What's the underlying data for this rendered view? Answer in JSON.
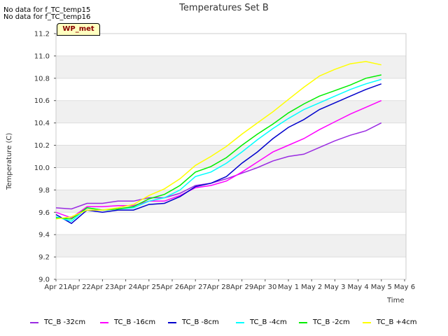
{
  "notes": [
    "No data for f_TC_temp15",
    "No data for f_TC_temp16"
  ],
  "badge": "WP_met",
  "chart_data": {
    "type": "line",
    "title": "Temperatures Set B",
    "xlabel": "Time",
    "ylabel": "Temperature (C)",
    "ylim": [
      9.0,
      11.2
    ],
    "yticks": [
      "9.0",
      "9.2",
      "9.4",
      "9.6",
      "9.8",
      "10.0",
      "10.2",
      "10.4",
      "10.6",
      "10.8",
      "11.0",
      "11.2"
    ],
    "xticks": [
      "Apr 21",
      "Apr 22",
      "Apr 23",
      "Apr 24",
      "Apr 25",
      "Apr 26",
      "Apr 27",
      "Apr 28",
      "Apr 29",
      "Apr 30",
      "May 1",
      "May 2",
      "May 3",
      "May 4",
      "May 5",
      "May 6"
    ],
    "grid": "banded horizontal",
    "legend": "bottom",
    "series": [
      {
        "name": "TC_B -32cm",
        "color": "#9a2be2",
        "values": [
          9.64,
          9.63,
          9.68,
          9.68,
          9.7,
          9.7,
          9.73,
          9.73,
          9.77,
          9.84,
          9.86,
          9.9,
          9.95,
          10.0,
          10.06,
          10.1,
          10.12,
          10.18,
          10.24,
          10.29,
          10.33,
          10.4
        ]
      },
      {
        "name": "TC_B -16cm",
        "color": "#ff00ff",
        "values": [
          9.6,
          9.55,
          9.65,
          9.65,
          9.66,
          9.66,
          9.7,
          9.7,
          9.75,
          9.82,
          9.84,
          9.88,
          9.96,
          10.05,
          10.14,
          10.2,
          10.26,
          10.34,
          10.41,
          10.48,
          10.54,
          10.6
        ]
      },
      {
        "name": "TC_B -8cm",
        "color": "#0000cc",
        "values": [
          9.58,
          9.5,
          9.62,
          9.6,
          9.62,
          9.62,
          9.67,
          9.68,
          9.74,
          9.83,
          9.86,
          9.92,
          10.04,
          10.14,
          10.26,
          10.36,
          10.43,
          10.52,
          10.58,
          10.64,
          10.7,
          10.75
        ]
      },
      {
        "name": "TC_B -4cm",
        "color": "#00ffff",
        "values": [
          9.56,
          9.52,
          9.64,
          9.62,
          9.63,
          9.64,
          9.7,
          9.73,
          9.8,
          9.92,
          9.96,
          10.04,
          10.14,
          10.25,
          10.35,
          10.44,
          10.52,
          10.58,
          10.64,
          10.7,
          10.75,
          10.79
        ]
      },
      {
        "name": "TC_B -2cm",
        "color": "#00ee00",
        "values": [
          9.55,
          9.54,
          9.64,
          9.62,
          9.63,
          9.65,
          9.72,
          9.76,
          9.84,
          9.96,
          10.01,
          10.09,
          10.2,
          10.3,
          10.39,
          10.49,
          10.57,
          10.64,
          10.69,
          10.74,
          10.8,
          10.83
        ]
      },
      {
        "name": "TC_B +4cm",
        "color": "#ffff00",
        "values": [
          9.54,
          9.56,
          9.62,
          9.62,
          9.64,
          9.67,
          9.75,
          9.81,
          9.9,
          10.02,
          10.1,
          10.19,
          10.3,
          10.4,
          10.5,
          10.61,
          10.72,
          10.82,
          10.88,
          10.93,
          10.95,
          10.92
        ]
      }
    ]
  }
}
